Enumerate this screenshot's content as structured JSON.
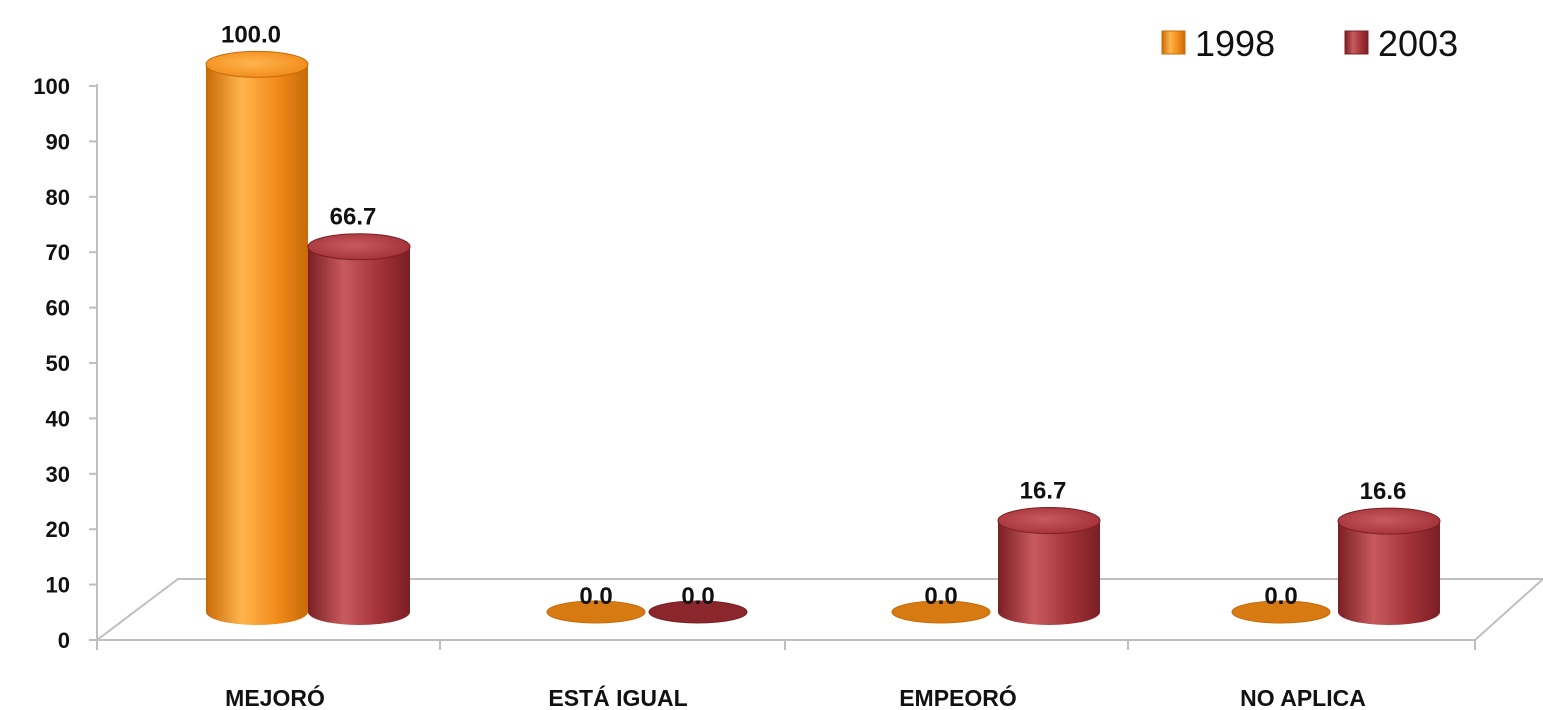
{
  "chart_data": {
    "type": "bar",
    "style": "3d-cylinder",
    "categories": [
      "MEJORÓ",
      "ESTÁ IGUAL",
      "EMPEORÓ",
      "NO APLICA"
    ],
    "series": [
      {
        "name": "1998",
        "values": [
          100.0,
          0.0,
          0.0,
          0.0
        ],
        "labels": [
          "100.0",
          "0.0",
          "0.0",
          "0.0"
        ],
        "color": "#f28a1a",
        "color_light": "#ffb54d",
        "color_dark": "#c86a08"
      },
      {
        "name": "2003",
        "values": [
          66.7,
          0.0,
          16.7,
          16.6
        ],
        "labels": [
          "66.7",
          "0.0",
          "16.7",
          "16.6"
        ],
        "color": "#a33238",
        "color_light": "#c85a5e",
        "color_dark": "#7a1f24"
      }
    ],
    "ylim": [
      0,
      100
    ],
    "yticks": [
      "0",
      "10",
      "20",
      "30",
      "40",
      "50",
      "60",
      "70",
      "80",
      "90",
      "100"
    ],
    "grid": false,
    "legend_position": "top-right"
  }
}
